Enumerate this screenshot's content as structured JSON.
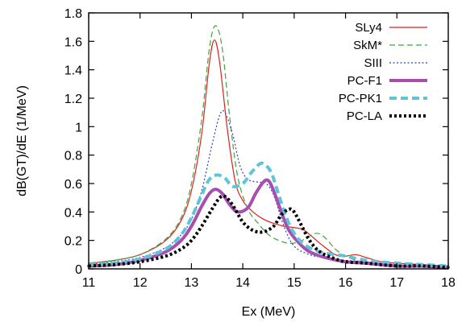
{
  "chart_data": {
    "type": "line",
    "xlabel": "Ex (MeV)",
    "ylabel": "dB(GT)/dE (1/MeV)",
    "xlim": [
      11,
      18
    ],
    "ylim": [
      0,
      1.8
    ],
    "xticks": [
      "11",
      "12",
      "13",
      "14",
      "15",
      "16",
      "17",
      "18"
    ],
    "yticks": [
      "0",
      "0.2",
      "0.4",
      "0.6",
      "0.8",
      "1",
      "1.2",
      "1.4",
      "1.6",
      "1.8"
    ],
    "grid": false,
    "legend_position": "top-right",
    "series": [
      {
        "name": "SLy4",
        "color": "#e0211b",
        "style": "solid-thin",
        "x": [
          11,
          11.5,
          12,
          12.5,
          12.8,
          13.0,
          13.2,
          13.35,
          13.45,
          13.55,
          13.7,
          13.85,
          14.0,
          14.2,
          14.4,
          14.6,
          14.8,
          15.0,
          15.2,
          15.5,
          15.8,
          16.0,
          16.2,
          16.4,
          16.7,
          17.0,
          17.5,
          18
        ],
        "y": [
          0.04,
          0.06,
          0.1,
          0.2,
          0.34,
          0.55,
          0.95,
          1.45,
          1.61,
          1.45,
          0.98,
          0.62,
          0.48,
          0.4,
          0.35,
          0.32,
          0.3,
          0.29,
          0.27,
          0.18,
          0.1,
          0.09,
          0.1,
          0.08,
          0.05,
          0.04,
          0.03,
          0.02
        ]
      },
      {
        "name": "SkM*",
        "color": "#3ea33e",
        "style": "dashed-thin",
        "x": [
          11,
          11.5,
          12,
          12.5,
          12.8,
          13.0,
          13.2,
          13.35,
          13.47,
          13.6,
          13.75,
          13.9,
          14.1,
          14.3,
          14.5,
          14.7,
          14.9,
          15.1,
          15.3,
          15.45,
          15.6,
          15.8,
          16.0,
          16.3,
          16.6,
          17.0,
          17.5,
          18
        ],
        "y": [
          0.04,
          0.06,
          0.1,
          0.21,
          0.36,
          0.6,
          1.05,
          1.55,
          1.71,
          1.55,
          1.05,
          0.65,
          0.42,
          0.32,
          0.24,
          0.2,
          0.18,
          0.19,
          0.23,
          0.25,
          0.22,
          0.14,
          0.09,
          0.05,
          0.04,
          0.03,
          0.02,
          0.02
        ]
      },
      {
        "name": "SIII",
        "color": "#2b3fbf",
        "style": "dotted-thin",
        "x": [
          11,
          11.5,
          12,
          12.5,
          12.8,
          13.0,
          13.2,
          13.4,
          13.55,
          13.65,
          13.8,
          13.95,
          14.1,
          14.3,
          14.45,
          14.6,
          14.8,
          15.0,
          15.3,
          15.6,
          16.0,
          16.4,
          17.0,
          17.5,
          18
        ],
        "y": [
          0.03,
          0.05,
          0.08,
          0.15,
          0.24,
          0.35,
          0.55,
          0.87,
          1.08,
          1.1,
          0.95,
          0.72,
          0.63,
          0.61,
          0.6,
          0.52,
          0.3,
          0.16,
          0.1,
          0.08,
          0.06,
          0.05,
          0.03,
          0.02,
          0.02
        ]
      },
      {
        "name": "PC-F1",
        "color": "#a64fb0",
        "style": "solid-thick",
        "x": [
          11,
          11.5,
          12,
          12.5,
          12.8,
          13.0,
          13.2,
          13.35,
          13.47,
          13.6,
          13.75,
          13.9,
          14.1,
          14.25,
          14.4,
          14.5,
          14.6,
          14.75,
          14.9,
          15.1,
          15.3,
          15.6,
          16.0,
          16.4,
          17.0,
          17.5,
          18
        ],
        "y": [
          0.02,
          0.03,
          0.06,
          0.12,
          0.2,
          0.3,
          0.44,
          0.53,
          0.56,
          0.53,
          0.45,
          0.4,
          0.43,
          0.53,
          0.61,
          0.62,
          0.55,
          0.4,
          0.27,
          0.18,
          0.12,
          0.08,
          0.05,
          0.04,
          0.02,
          0.02,
          0.01
        ]
      },
      {
        "name": "PC-PK1",
        "color": "#5fc4d8",
        "style": "dashed-thick",
        "x": [
          11,
          11.5,
          12,
          12.5,
          12.8,
          13.0,
          13.2,
          13.35,
          13.5,
          13.65,
          13.8,
          14.0,
          14.15,
          14.3,
          14.4,
          14.55,
          14.7,
          14.85,
          15.0,
          15.2,
          15.5,
          15.8,
          16.0,
          16.4,
          17.0,
          17.5,
          18
        ],
        "y": [
          0.03,
          0.04,
          0.07,
          0.14,
          0.24,
          0.36,
          0.52,
          0.63,
          0.66,
          0.64,
          0.58,
          0.6,
          0.67,
          0.73,
          0.74,
          0.68,
          0.52,
          0.36,
          0.25,
          0.17,
          0.12,
          0.1,
          0.09,
          0.06,
          0.04,
          0.03,
          0.02
        ]
      },
      {
        "name": "PC-LA",
        "color": "#000000",
        "style": "dotted-thick",
        "x": [
          11,
          11.5,
          12,
          12.5,
          12.8,
          13.0,
          13.2,
          13.4,
          13.55,
          13.65,
          13.8,
          14.0,
          14.2,
          14.4,
          14.6,
          14.75,
          14.9,
          15.0,
          15.15,
          15.3,
          15.5,
          15.8,
          16.0,
          16.4,
          17.0,
          17.5,
          18
        ],
        "y": [
          0.02,
          0.03,
          0.05,
          0.09,
          0.14,
          0.2,
          0.3,
          0.42,
          0.5,
          0.51,
          0.45,
          0.33,
          0.27,
          0.26,
          0.3,
          0.38,
          0.42,
          0.4,
          0.3,
          0.2,
          0.12,
          0.07,
          0.05,
          0.04,
          0.02,
          0.02,
          0.01
        ]
      }
    ]
  }
}
